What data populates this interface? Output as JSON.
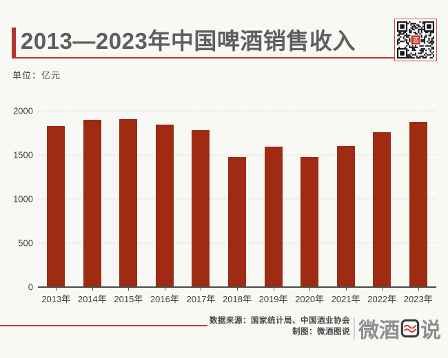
{
  "header": {
    "title": "2013—2023年中国啤酒销售收入",
    "unit_label": "单位：亿元"
  },
  "chart_data": {
    "type": "bar",
    "title": "2013—2023年中国啤酒销售收入",
    "unit": "亿元",
    "categories": [
      "2013年",
      "2014年",
      "2015年",
      "2016年",
      "2017年",
      "2018年",
      "2019年",
      "2020年",
      "2021年",
      "2022年",
      "2023年"
    ],
    "values": [
      1825,
      1900,
      1910,
      1845,
      1780,
      1480,
      1590,
      1475,
      1600,
      1760,
      1875
    ],
    "xlabel": "",
    "ylabel": "单位：亿元",
    "ylim": [
      0,
      2000
    ],
    "yticks": [
      0,
      500,
      1000,
      1500,
      2000
    ],
    "grid": "horizontal-dashed",
    "legend": "none",
    "bar_color": "#9E2B12"
  },
  "footer": {
    "source_label": "数据来源：国家统计局、中国酒业协会",
    "credit_label": "制图：微酒图说",
    "logo_prefix": "微酒",
    "logo_suffix": "说"
  },
  "colors": {
    "background": "#F8F8F5",
    "bar": "#9E2B12",
    "accent_red": "#B23230",
    "line_red": "#C5352C",
    "title_text": "#5E5E5E",
    "axis_text": "#3F3F3F",
    "gridline": "#DCDCDC",
    "logo_gray": "#8E8E8E"
  }
}
